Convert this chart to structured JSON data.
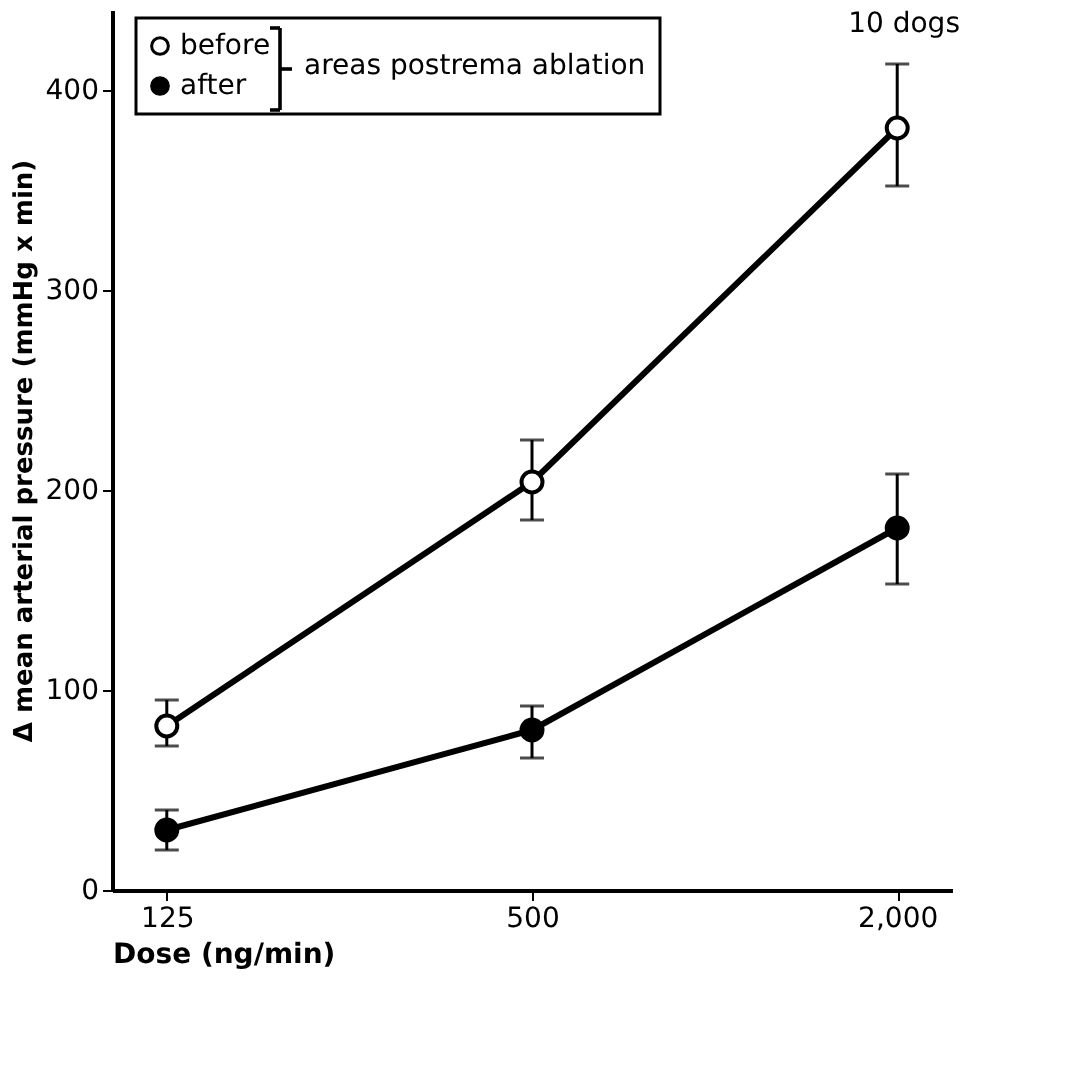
{
  "chart_data": {
    "type": "line",
    "xlabel": "Dose (ng/min)",
    "ylabel": "Δ mean arterial pressure (mmHg x min)",
    "legend_title": "areas postrema ablation",
    "categories": [
      "125",
      "500",
      "2,000"
    ],
    "series": [
      {
        "name": "before",
        "color": "#000000",
        "values": [
          82,
          204,
          381
        ],
        "errors": [
          [
            72,
            95
          ],
          [
            185,
            225
          ],
          [
            352,
            413
          ]
        ]
      },
      {
        "name": "after",
        "color": "#000000",
        "values": [
          30,
          80,
          181
        ],
        "errors": [
          [
            20,
            40
          ],
          [
            66,
            92
          ],
          [
            153,
            208
          ]
        ]
      }
    ],
    "ylim": [
      0,
      440
    ],
    "yticks": [
      0,
      100,
      200,
      300,
      400
    ],
    "annotations": [
      "10 dogs"
    ],
    "grid": false,
    "legend": "top left",
    "marker": "circle",
    "line_style": "solid"
  }
}
